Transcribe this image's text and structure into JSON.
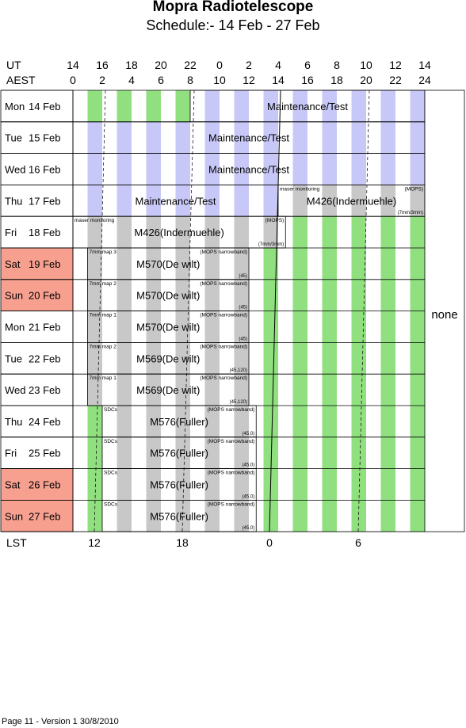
{
  "header": {
    "title": "Mopra Radiotelescope",
    "subtitle": "Schedule:- 14 Feb - 27 Feb",
    "ut_label": "UT",
    "aest_label": "AEST",
    "lst_label": "LST",
    "ut_ticks": [
      "14",
      "16",
      "18",
      "20",
      "22",
      "0",
      "2",
      "4",
      "6",
      "8",
      "10",
      "12",
      "14"
    ],
    "aest_ticks": [
      "0",
      "2",
      "4",
      "6",
      "8",
      "10",
      "12",
      "14",
      "16",
      "18",
      "20",
      "22",
      "24"
    ],
    "lst_ticks": [
      "12",
      "18",
      "0",
      "6"
    ]
  },
  "days": [
    {
      "dow": "Mon",
      "date": "14 Feb",
      "weekend": false
    },
    {
      "dow": "Tue",
      "date": "15 Feb",
      "weekend": false
    },
    {
      "dow": "Wed",
      "date": "16 Feb",
      "weekend": false
    },
    {
      "dow": "Thu",
      "date": "17 Feb",
      "weekend": false
    },
    {
      "dow": "Fri",
      "date": "18 Feb",
      "weekend": false
    },
    {
      "dow": "Sat",
      "date": "19 Feb",
      "weekend": true
    },
    {
      "dow": "Sun",
      "date": "20 Feb",
      "weekend": true
    },
    {
      "dow": "Mon",
      "date": "21 Feb",
      "weekend": false
    },
    {
      "dow": "Tue",
      "date": "22 Feb",
      "weekend": false
    },
    {
      "dow": "Wed",
      "date": "23 Feb",
      "weekend": false
    },
    {
      "dow": "Thu",
      "date": "24 Feb",
      "weekend": false
    },
    {
      "dow": "Fri",
      "date": "25 Feb",
      "weekend": false
    },
    {
      "dow": "Sat",
      "date": "26 Feb",
      "weekend": true
    },
    {
      "dow": "Sun",
      "date": "27 Feb",
      "weekend": true
    }
  ],
  "blocks": [
    {
      "row": 0,
      "start": 8,
      "end": 24,
      "label": "Maintenance/Test",
      "kind": "maint"
    },
    {
      "row": 1,
      "start": 0,
      "end": 24,
      "label": "Maintenance/Test",
      "kind": "maint"
    },
    {
      "row": 2,
      "start": 0,
      "end": 24,
      "label": "Maintenance/Test",
      "kind": "maint"
    },
    {
      "row": 3,
      "start": 0,
      "end": 14,
      "label": "Maintenance/Test",
      "kind": "maint"
    },
    {
      "row": 3,
      "start": 14,
      "end": 24,
      "label": "M426(Indermuehle)",
      "kind": "obs",
      "tl": "maser monitoring",
      "tr": "(MOPS)",
      "br": "(7mm/3mm)"
    },
    {
      "row": 4,
      "start": 0,
      "end": 14.5,
      "label": "M426(Indermuehle)",
      "kind": "obs",
      "tl": "maser monitoring",
      "tr": "(MOPS)",
      "br": "(7mm/3mm)"
    },
    {
      "row": 5,
      "start": 1,
      "end": 12,
      "label": "M570(De wilt)",
      "kind": "obs",
      "tl": "7mm map 3",
      "tr": "(MOPS narrowband)",
      "br": "(45)"
    },
    {
      "row": 6,
      "start": 1,
      "end": 12,
      "label": "M570(De wilt)",
      "kind": "obs",
      "tl": "7mm map 2",
      "tr": "(MOPS narrowband)",
      "br": "(45)"
    },
    {
      "row": 7,
      "start": 1,
      "end": 12,
      "label": "M570(De wilt)",
      "kind": "obs",
      "tl": "7mm map 1",
      "tr": "(MOPS narrowband)",
      "br": "(45)"
    },
    {
      "row": 8,
      "start": 1,
      "end": 12,
      "label": "M569(De wilt)",
      "kind": "obs",
      "tl": "7mm map 2",
      "tr": "(MOPS narrowband)",
      "br": "(45,120)"
    },
    {
      "row": 9,
      "start": 1,
      "end": 12,
      "label": "M569(De wilt)",
      "kind": "obs",
      "tl": "7mm map 1",
      "tr": "(MOPS narrowband)",
      "br": "(45,120)"
    },
    {
      "row": 10,
      "start": 2,
      "end": 12.5,
      "label": "M576(Fuller)",
      "kind": "obs",
      "tl": "SDCs",
      "tr": "(MOPS narrowband)",
      "br": "(45,0)"
    },
    {
      "row": 11,
      "start": 2,
      "end": 12.5,
      "label": "M576(Fuller)",
      "kind": "obs",
      "tl": "SDCs",
      "tr": "(MOPS narrowband)",
      "br": "(45,0)"
    },
    {
      "row": 12,
      "start": 2,
      "end": 12.5,
      "label": "M576(Fuller)",
      "kind": "obs",
      "tl": "SDCs",
      "tr": "(MOPS narrowband)",
      "br": "(45,0)"
    },
    {
      "row": 13,
      "start": 2,
      "end": 12.5,
      "label": "M576(Fuller)",
      "kind": "obs",
      "tl": "SDCs",
      "tr": "(MOPS narrowband)",
      "br": "(45,0)"
    }
  ],
  "right_label": "none",
  "footer": "Page 11 - Version 1  30/8/2010",
  "colors": {
    "green": "#90e080",
    "blue": "#c8c8f8",
    "grey": "#c8c8c8",
    "weekend": "#f8a090"
  }
}
